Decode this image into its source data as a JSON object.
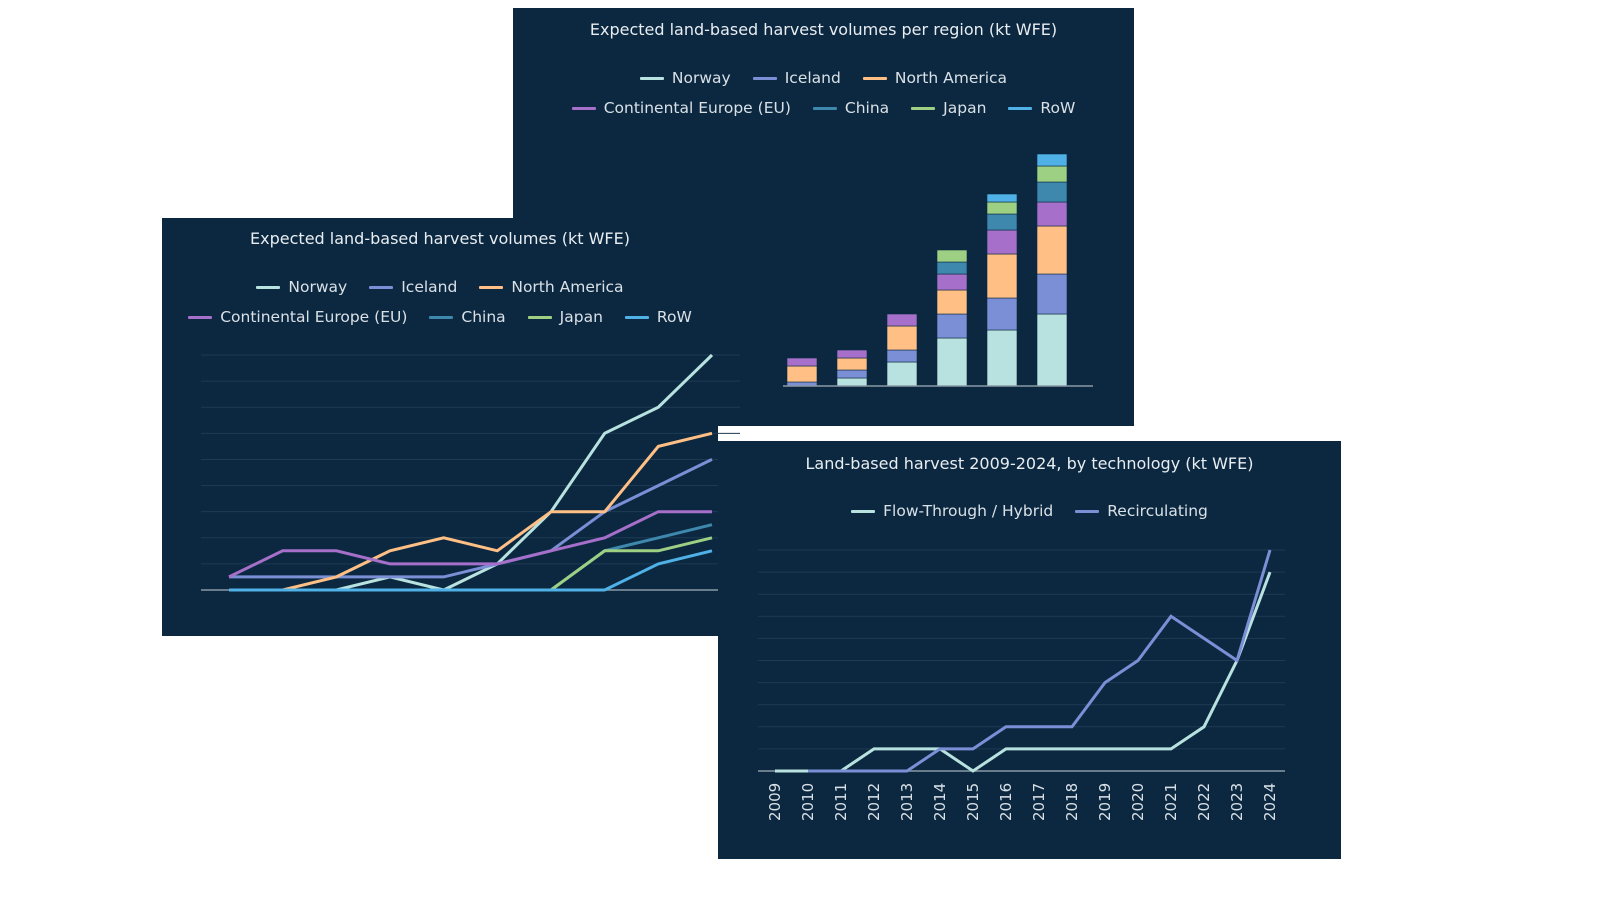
{
  "colors": {
    "background": "#0b2840",
    "gridline": "#1d3a52",
    "axis": "#8a99a6",
    "text": "#e8edf1"
  },
  "chart_data": [
    {
      "id": "stacked",
      "type": "bar",
      "stacked": true,
      "title": "Expected land-based harvest volumes per region (kt WFE)",
      "legend_position": "top",
      "categories": [
        "",
        "",
        "",
        "",
        "",
        ""
      ],
      "grid": false,
      "series": [
        {
          "name": "Norway",
          "color": "#b8e2df",
          "values": [
            0,
            1,
            3,
            6,
            7,
            9
          ]
        },
        {
          "name": "Iceland",
          "color": "#7b8fd6",
          "values": [
            0.5,
            1,
            1.5,
            3,
            4,
            5
          ]
        },
        {
          "name": "North America",
          "color": "#ffbf85",
          "values": [
            2,
            1.5,
            3,
            3,
            5.5,
            6
          ]
        },
        {
          "name": "Continental Europe (EU)",
          "color": "#a66fc9",
          "values": [
            1,
            1,
            1.5,
            2,
            3,
            3
          ]
        },
        {
          "name": "China",
          "color": "#3f88ad",
          "values": [
            0,
            0,
            0,
            1.5,
            2,
            2.5
          ]
        },
        {
          "name": "Japan",
          "color": "#9ed084",
          "values": [
            0,
            0,
            0,
            1.5,
            1.5,
            2
          ]
        },
        {
          "name": "RoW",
          "color": "#4fb1e6",
          "values": [
            0,
            0,
            0,
            0,
            1,
            1.5
          ]
        }
      ]
    },
    {
      "id": "lines",
      "type": "line",
      "title": "Expected land-based harvest volumes (kt WFE)",
      "legend_position": "top",
      "grid": true,
      "ylim": [
        0,
        9
      ],
      "x": [
        "",
        "",
        "",
        "",
        "",
        "",
        "",
        "",
        "",
        ""
      ],
      "series": [
        {
          "name": "Norway",
          "color": "#b8e2df",
          "values": [
            0,
            0,
            0,
            0.5,
            0,
            1,
            3,
            6,
            7,
            9
          ]
        },
        {
          "name": "Iceland",
          "color": "#7b8fd6",
          "values": [
            0.5,
            0.5,
            0.5,
            0.5,
            0.5,
            1,
            1.5,
            3,
            4,
            5
          ]
        },
        {
          "name": "North America",
          "color": "#ffbf85",
          "values": [
            0,
            0,
            0.5,
            1.5,
            2,
            1.5,
            3,
            3,
            5.5,
            6
          ]
        },
        {
          "name": "Continental Europe (EU)",
          "color": "#a66fc9",
          "values": [
            0.5,
            1.5,
            1.5,
            1,
            1,
            1,
            1.5,
            2,
            3,
            3
          ]
        },
        {
          "name": "China",
          "color": "#3f88ad",
          "values": [
            0,
            0,
            0,
            0,
            0,
            0,
            0,
            1.5,
            2,
            2.5
          ]
        },
        {
          "name": "Japan",
          "color": "#9ed084",
          "values": [
            0,
            0,
            0,
            0,
            0,
            0,
            0,
            1.5,
            1.5,
            2
          ]
        },
        {
          "name": "RoW",
          "color": "#4fb1e6",
          "values": [
            0,
            0,
            0,
            0,
            0,
            0,
            0,
            0,
            1,
            1.5
          ]
        }
      ]
    },
    {
      "id": "tech",
      "type": "line",
      "title": "Land-based harvest 2009-2024, by technology (kt WFE)",
      "legend_position": "top",
      "grid": true,
      "ylim": [
        0,
        10
      ],
      "x": [
        "2009",
        "2010",
        "2011",
        "2012",
        "2013",
        "2014",
        "2015",
        "2016",
        "2017",
        "2018",
        "2019",
        "2020",
        "2021",
        "2022",
        "2023",
        "2024"
      ],
      "series": [
        {
          "name": "Flow-Through / Hybrid",
          "color": "#b8e2df",
          "values": [
            0,
            0,
            0,
            1,
            1,
            1,
            0,
            1,
            1,
            1,
            1,
            1,
            1,
            2,
            5,
            9
          ]
        },
        {
          "name": "Recirculating",
          "color": "#7b8fd6",
          "values": [
            null,
            0,
            0,
            0,
            0,
            1,
            1,
            2,
            2,
            2,
            4,
            5,
            7,
            6,
            5,
            10
          ]
        }
      ]
    }
  ]
}
